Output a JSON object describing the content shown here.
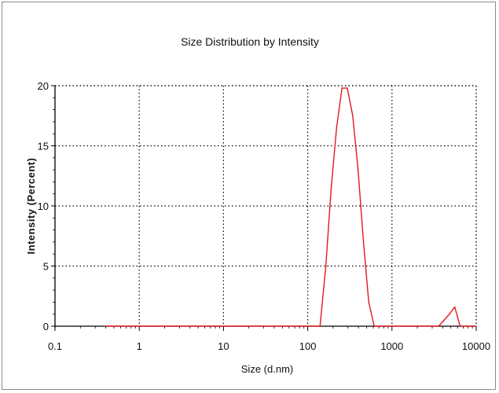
{
  "chart_data": {
    "type": "line",
    "title": "Size Distribution by Intensity",
    "xlabel": "Size (d.nm)",
    "ylabel": "Intensity (Percent)",
    "x_scale": "log",
    "xlim": [
      0.1,
      10000
    ],
    "ylim": [
      0,
      20
    ],
    "x_ticks": [
      "0.1",
      "1",
      "10",
      "100",
      "1000",
      "10000"
    ],
    "y_ticks": [
      "0",
      "5",
      "10",
      "15",
      "20"
    ],
    "grid": true,
    "legend": "none",
    "colors": {
      "line": "#e0191f",
      "axis": "#000000",
      "grid": "#000000"
    },
    "series": [
      {
        "x": [
          0.4,
          1,
          10,
          100,
          122,
          140,
          164,
          190,
          220,
          255,
          295,
          342,
          396,
          459,
          530,
          615,
          712,
          825,
          1000,
          2000,
          3000,
          3580,
          4150,
          4800,
          5560,
          6440,
          7460,
          8000,
          9000,
          10000
        ],
        "y": [
          0,
          0,
          0,
          0,
          0,
          0,
          5,
          11.5,
          16.5,
          19.8,
          19.8,
          17.5,
          13.0,
          7.0,
          2.0,
          0,
          0,
          0,
          0,
          0,
          0,
          0,
          0.5,
          1.0,
          1.6,
          0,
          0,
          0,
          0,
          0
        ]
      }
    ]
  }
}
